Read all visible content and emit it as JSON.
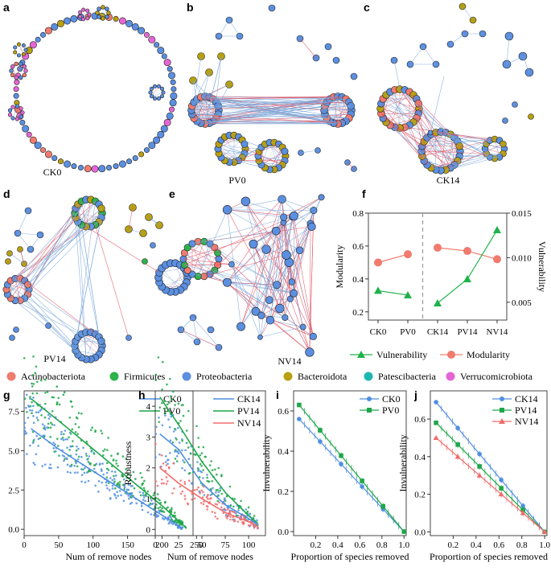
{
  "panel_labels": [
    "a",
    "b",
    "c",
    "d",
    "e",
    "f",
    "g",
    "h",
    "i",
    "j"
  ],
  "networks": {
    "a": {
      "label": "CK0"
    },
    "b": {
      "label": "PV0"
    },
    "c": {
      "label": "CK14"
    },
    "d": {
      "label": "PV14"
    },
    "e": {
      "label": "NV14"
    }
  },
  "colors": {
    "Actinobacteriota": "#f07b6e",
    "Firmicutes": "#2db34a",
    "Proteobacteria": "#5b8fe0",
    "Bacteroidota": "#b8a010",
    "Patescibacteria": "#1cb7b0",
    "Verrucomicrobiota": "#e466d6",
    "edge_pos": "#e05060",
    "edge_neg": "#7aa6d8",
    "CK0": "#4f8fe0",
    "PV0": "#1fa64a",
    "CK14": "#4f8fe0",
    "PV14": "#1fa64a",
    "NV14": "#f26b6b"
  },
  "phylum_legend": [
    "Actinobacteriota",
    "Firmicutes",
    "Proteobacteria",
    "Bacteroidota",
    "Patescibacteria",
    "Verrucomicrobiota"
  ],
  "chart_data": [
    {
      "id": "f",
      "type": "line",
      "categories": [
        "CK0",
        "PV0",
        "CK14",
        "PV14",
        "NV14"
      ],
      "series": [
        {
          "name": "Modularity",
          "axis": "left",
          "segments": [
            [
              0,
              1
            ],
            [
              2,
              3,
              4
            ]
          ],
          "values": [
            0.5,
            0.55,
            0.59,
            0.57,
            0.52
          ]
        },
        {
          "name": "Vulnerability",
          "axis": "right",
          "segments": [
            [
              0,
              1
            ],
            [
              2,
              3,
              4
            ]
          ],
          "values": [
            0.0063,
            0.0058,
            0.0049,
            0.0076,
            0.0131
          ]
        }
      ],
      "ylabel_left": "Modularity",
      "ylabel_right": "Vulnerability",
      "ylim_left": [
        0.15,
        0.8
      ],
      "yticks_left": [
        "0.2",
        "0.4",
        "0.6",
        "0.8"
      ],
      "ylim_right": [
        0.003,
        0.015
      ],
      "yticks_right": [
        "0.005",
        "0.010",
        "0.015"
      ],
      "legend": [
        "Vulnerability",
        "Modularity"
      ]
    },
    {
      "id": "g",
      "type": "scatter",
      "xlabel": "Num of remove nodes",
      "ylabel": "Robustness",
      "xlim": [
        0,
        245
      ],
      "ylim": [
        -0.4,
        8.8
      ],
      "xticks": [
        "0",
        "50",
        "100",
        "150",
        "200",
        "250"
      ],
      "yticks": [
        "0.0",
        "2.5",
        "5.0",
        "7.5"
      ],
      "series": [
        {
          "name": "CK0",
          "fit": [
            [
              10,
              6.4
            ],
            [
              50,
              5.1
            ],
            [
              100,
              3.7
            ],
            [
              150,
              2.3
            ],
            [
              200,
              0.9
            ],
            [
              230,
              0.05
            ]
          ],
          "n_points": 230,
          "x_max": 230
        },
        {
          "name": "PV0",
          "fit": [
            [
              10,
              8.3
            ],
            [
              50,
              6.9
            ],
            [
              100,
              5.1
            ],
            [
              150,
              3.3
            ],
            [
              200,
              1.5
            ],
            [
              235,
              0.1
            ]
          ],
          "n_points": 235,
          "x_max": 235
        }
      ]
    },
    {
      "id": "h",
      "type": "scatter",
      "xlabel": "Num of remove nodes",
      "ylabel": "Robustness",
      "xlim": [
        0,
        118
      ],
      "ylim": [
        -0.2,
        4.5
      ],
      "xticks": [
        "0",
        "25",
        "50",
        "75",
        "100"
      ],
      "yticks": [
        "0",
        "1",
        "2",
        "3",
        "4"
      ],
      "series": [
        {
          "name": "CK14",
          "fit": [
            [
              5,
              3.1
            ],
            [
              25,
              2.6
            ],
            [
              50,
              1.5
            ],
            [
              75,
              0.8
            ],
            [
              100,
              0.35
            ],
            [
              110,
              0.15
            ]
          ],
          "n_points": 110,
          "x_max": 110
        },
        {
          "name": "PV14",
          "fit": [
            [
              5,
              4.3
            ],
            [
              25,
              3.4
            ],
            [
              50,
              2.2
            ],
            [
              75,
              1.2
            ],
            [
              100,
              0.45
            ],
            [
              110,
              0.2
            ]
          ],
          "n_points": 110,
          "x_max": 110
        },
        {
          "name": "NV14",
          "fit": [
            [
              5,
              2.0
            ],
            [
              25,
              1.5
            ],
            [
              50,
              1.0
            ],
            [
              75,
              0.55
            ],
            [
              100,
              0.25
            ],
            [
              110,
              0.1
            ]
          ],
          "n_points": 110,
          "x_max": 110
        }
      ]
    },
    {
      "id": "i",
      "type": "line",
      "xlabel": "Proportion of species removed",
      "ylabel": "Invulnerability",
      "xlim": [
        0.0,
        1.02
      ],
      "ylim": [
        -0.02,
        0.7
      ],
      "xticks": [
        "0.2",
        "0.4",
        "0.6",
        "0.8",
        "1.0"
      ],
      "yticks": [
        "0.0",
        "0.2",
        "0.4",
        "0.6"
      ],
      "series": [
        {
          "name": "CK0",
          "marker": "circle",
          "start": 0.56
        },
        {
          "name": "PV0",
          "marker": "square",
          "start": 0.63
        }
      ]
    },
    {
      "id": "j",
      "type": "line",
      "xlabel": "Proportion of species removed",
      "ylabel": "Invulnerability",
      "xlim": [
        0.0,
        1.02
      ],
      "ylim": [
        -0.02,
        0.75
      ],
      "xticks": [
        "0.2",
        "0.4",
        "0.6",
        "0.8",
        "1.0"
      ],
      "yticks": [
        "0.0",
        "0.2",
        "0.4",
        "0.6"
      ],
      "series": [
        {
          "name": "CK14",
          "marker": "circle",
          "start": 0.69
        },
        {
          "name": "PV14",
          "marker": "square",
          "start": 0.58
        },
        {
          "name": "NV14",
          "marker": "triangle",
          "start": 0.5
        }
      ]
    }
  ]
}
